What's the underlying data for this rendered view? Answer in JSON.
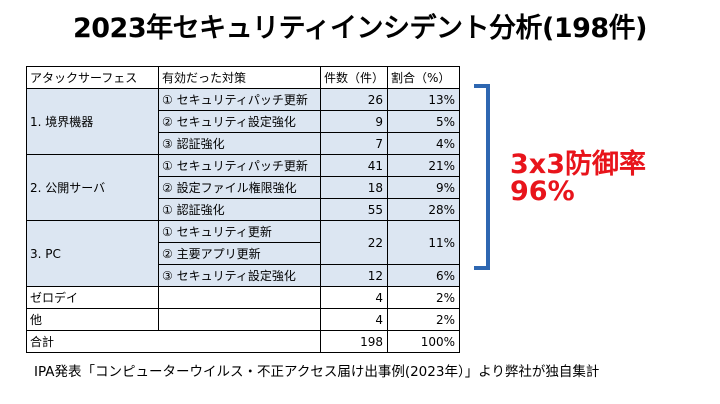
{
  "title": "2023年セキュリティインシデント分析(198件)",
  "table": {
    "headers": [
      "アタックサーフェス",
      "有効だった対策",
      "件数（件）",
      "割合（%）"
    ],
    "groups": [
      {
        "label": "1. 境界機器",
        "rows": [
          {
            "measure": "① セキュリティパッチ更新",
            "count": "26",
            "pct": "13%"
          },
          {
            "measure": "② セキュリティ設定強化",
            "count": "9",
            "pct": "5%"
          },
          {
            "measure": "③ 認証強化",
            "count": "7",
            "pct": "4%"
          }
        ]
      },
      {
        "label": "2. 公開サーバ",
        "rows": [
          {
            "measure": "① セキュリティパッチ更新",
            "count": "41",
            "pct": "21%"
          },
          {
            "measure": "② 設定ファイル権限強化",
            "count": "18",
            "pct": "9%"
          },
          {
            "measure": "① 認証強化",
            "count": "55",
            "pct": "28%"
          }
        ]
      },
      {
        "label": "3. PC",
        "rows": [
          {
            "measure": "① セキュリティ更新"
          },
          {
            "measure": "② 主要アプリ更新"
          },
          {
            "measure": "③ セキュリティ設定強化",
            "count": "12",
            "pct": "6%"
          }
        ],
        "merged_count": "22",
        "merged_pct": "11%"
      }
    ],
    "others": [
      {
        "label": "ゼロデイ",
        "measure": "",
        "count": "4",
        "pct": "2%"
      },
      {
        "label": "他",
        "measure": "",
        "count": "4",
        "pct": "2%"
      }
    ],
    "total": {
      "label": "合計",
      "count": "198",
      "pct": "100%"
    }
  },
  "highlight": {
    "line1": "3x3防御率",
    "line2": "96%",
    "color": "#e8141b",
    "bracket_color": "#2e67b1"
  },
  "footer": "IPA発表「コンピューターウイルス・不正アクセス届け出事例(2023年）」より弊社が独自集計"
}
